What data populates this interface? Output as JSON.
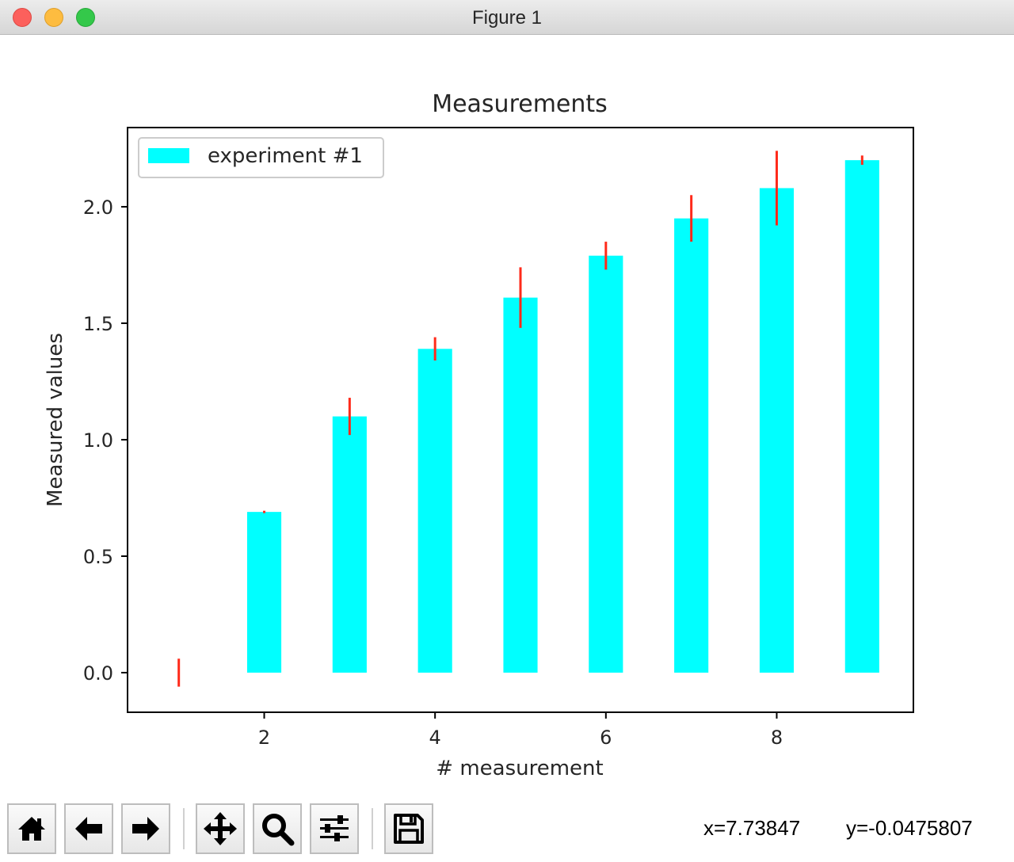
{
  "window": {
    "title": "Figure 1"
  },
  "toolbar": {
    "buttons": [
      {
        "name": "home-button",
        "icon": "home-icon"
      },
      {
        "name": "back-button",
        "icon": "arrow-left-icon"
      },
      {
        "name": "forward-button",
        "icon": "arrow-right-icon"
      },
      {
        "name": "pan-button",
        "icon": "move-icon"
      },
      {
        "name": "zoom-button",
        "icon": "magnifier-icon"
      },
      {
        "name": "configure-subplots-button",
        "icon": "sliders-icon"
      },
      {
        "name": "save-button",
        "icon": "floppy-disk-icon"
      }
    ],
    "x_readout": "x=7.73847",
    "y_readout": "y=-0.0475807"
  },
  "chart_data": {
    "type": "bar",
    "title": "Measurements",
    "xlabel": "# measurement",
    "ylabel": "Measured values",
    "x": [
      1,
      2,
      3,
      4,
      5,
      6,
      7,
      8,
      9
    ],
    "series": [
      {
        "name": "experiment #1",
        "values": [
          0.0,
          0.69,
          1.1,
          1.39,
          1.61,
          1.79,
          1.95,
          2.08,
          2.2
        ],
        "errors": [
          0.06,
          0.005,
          0.08,
          0.05,
          0.13,
          0.06,
          0.1,
          0.16,
          0.02
        ],
        "color": "#00ffff",
        "error_color": "#ff2a1a"
      }
    ],
    "bar_width": 0.4,
    "xlim": [
      0.4,
      9.6
    ],
    "ylim": [
      -0.17,
      2.34
    ],
    "xticks": [
      2,
      4,
      6,
      8
    ],
    "xtick_labels": [
      "2",
      "4",
      "6",
      "8"
    ],
    "yticks": [
      0.0,
      0.5,
      1.0,
      1.5,
      2.0
    ],
    "ytick_labels": [
      "0.0",
      "0.5",
      "1.0",
      "1.5",
      "2.0"
    ],
    "grid": false,
    "legend": "top-left"
  }
}
